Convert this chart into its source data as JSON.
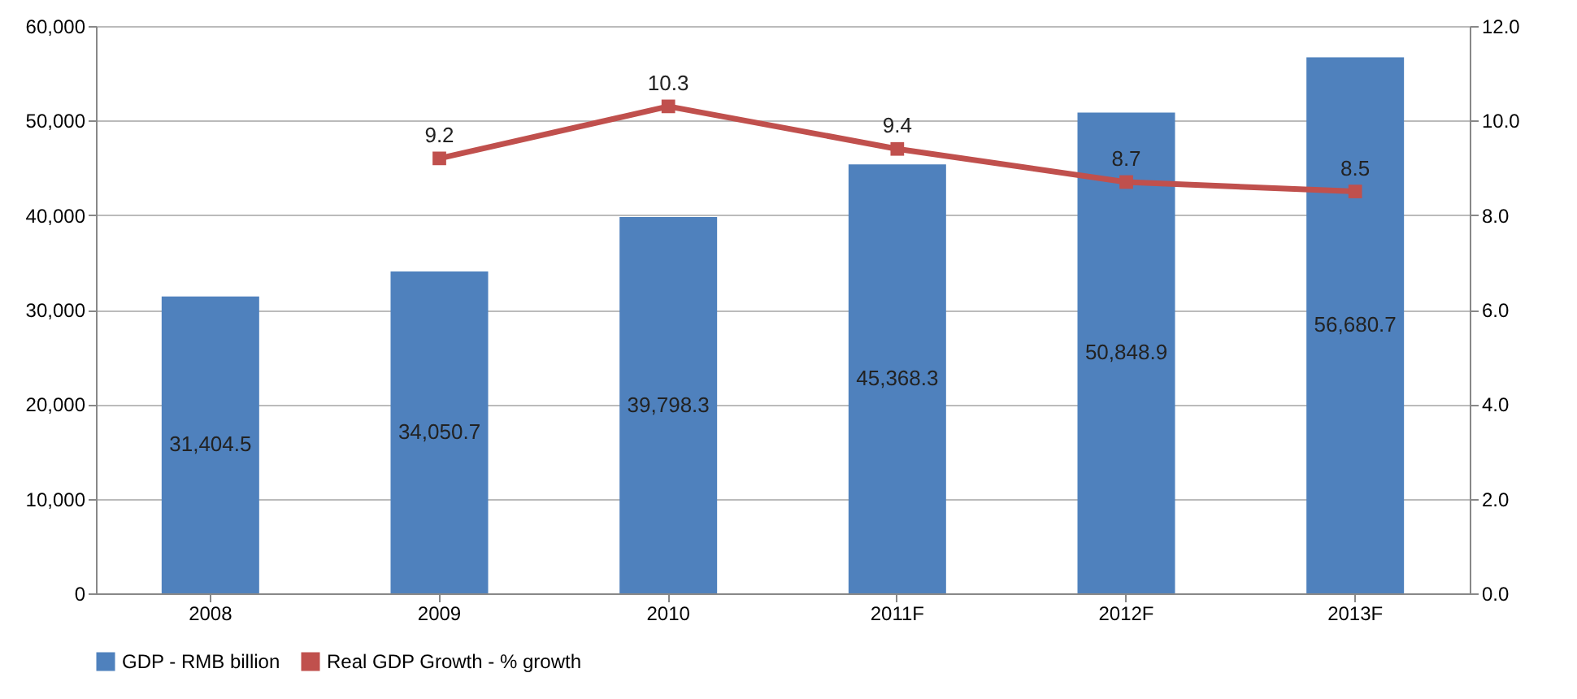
{
  "chart_data": {
    "type": "bar",
    "categories": [
      "2008",
      "2009",
      "2010",
      "2011F",
      "2012F",
      "2013F"
    ],
    "series": [
      {
        "name": "GDP - RMB billion",
        "color": "#4f81bd",
        "values": [
          31404.5,
          34050.7,
          39798.3,
          45368.3,
          50848.9,
          56680.7
        ],
        "value_labels": [
          "31,404.5",
          "34,050.7",
          "39,798.3",
          "45,368.3",
          "50,848.9",
          "56,680.7"
        ]
      },
      {
        "name": "Real GDP Growth - % growth",
        "type": "line",
        "axis": "y2",
        "color": "#c0504d",
        "marker": "square",
        "values": [
          null,
          9.2,
          10.3,
          9.4,
          8.7,
          8.5
        ],
        "value_labels": [
          null,
          "9.2",
          "10.3",
          "9.4",
          "8.7",
          "8.5"
        ]
      }
    ],
    "ylim": [
      0,
      60000
    ],
    "yticks": [
      {
        "value": 0,
        "label": "0"
      },
      {
        "value": 10000,
        "label": "10,000"
      },
      {
        "value": 20000,
        "label": "20,000"
      },
      {
        "value": 30000,
        "label": "30,000"
      },
      {
        "value": 40000,
        "label": "40,000"
      },
      {
        "value": 50000,
        "label": "50,000"
      },
      {
        "value": 60000,
        "label": "60,000"
      }
    ],
    "y2lim": [
      0,
      12
    ],
    "y2ticks": [
      {
        "value": 0,
        "label": "0.0"
      },
      {
        "value": 2,
        "label": "2.0"
      },
      {
        "value": 4,
        "label": "4.0"
      },
      {
        "value": 6,
        "label": "6.0"
      },
      {
        "value": 8,
        "label": "8.0"
      },
      {
        "value": 10,
        "label": "10.0"
      },
      {
        "value": 12,
        "label": "12.0"
      }
    ],
    "grid": "y",
    "legend": "bottom"
  }
}
